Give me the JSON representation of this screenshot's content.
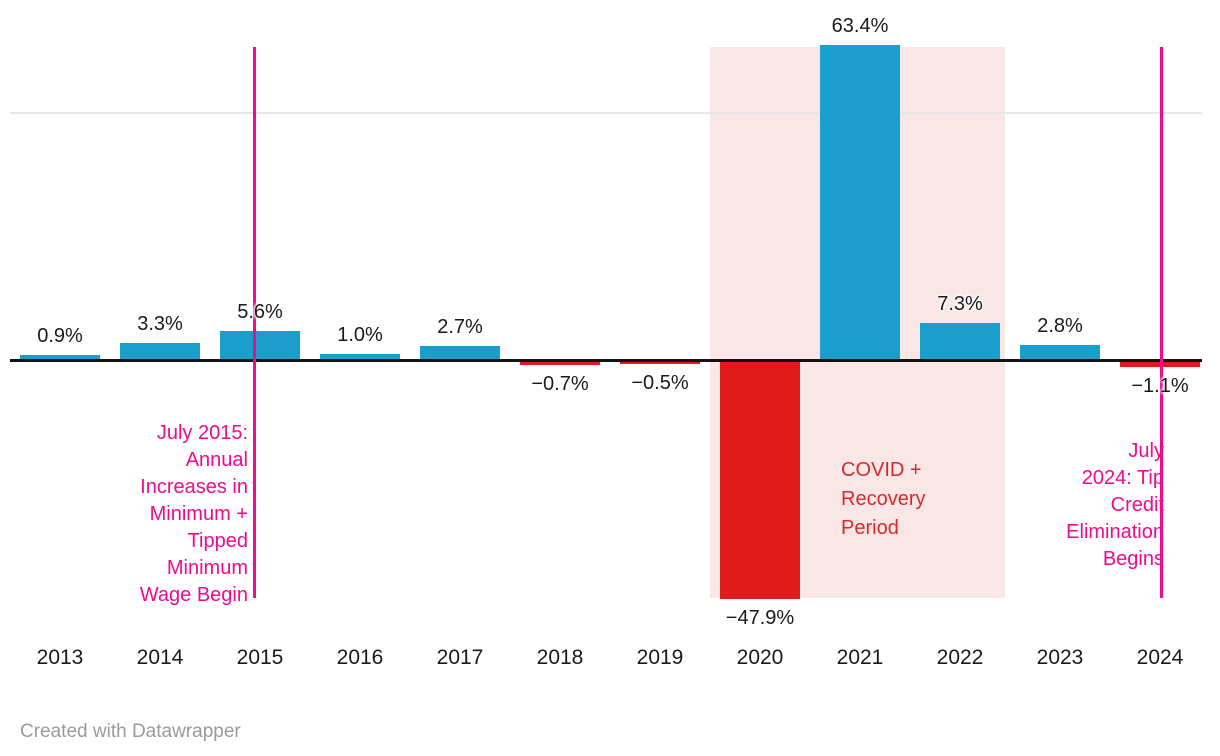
{
  "chart_data": {
    "type": "bar",
    "categories": [
      "2013",
      "2014",
      "2015",
      "2016",
      "2017",
      "2018",
      "2019",
      "2020",
      "2021",
      "2022",
      "2023",
      "2024"
    ],
    "values": [
      0.9,
      3.3,
      5.6,
      1.0,
      2.7,
      -0.7,
      -0.5,
      -47.9,
      63.4,
      7.3,
      2.8,
      -1.1
    ],
    "value_labels": [
      "0.9%",
      "3.3%",
      "5.6%",
      "1.0%",
      "2.7%",
      "−0.7%",
      "−0.5%",
      "−47.9%",
      "63.4%",
      "7.3%",
      "2.8%",
      "−1.1%"
    ],
    "title": "",
    "xlabel": "",
    "ylabel": "",
    "ylim": [
      -47.9,
      63.4
    ],
    "gridlines_pct": [
      50
    ],
    "legend": "none",
    "colors": {
      "positive_bar": "#1a9fcc",
      "negative_bar": "#e11b1c",
      "zero_axis": "#131313",
      "gridline": "#e7e7e7"
    },
    "annotations": {
      "line_2015": {
        "at": "July 2015",
        "color": "#f00a8e",
        "label": "July 2015:\nAnnual\nIncreases in\nMinimum +\nTipped\nMinimum\nWage Begin"
      },
      "region_covid": {
        "start_category": "2020",
        "end_category": "2022",
        "fill": "#f9e7e7",
        "text_color": "#d52b2b",
        "label": "COVID +\nRecovery\nPeriod"
      },
      "line_2024": {
        "at": "July 2024",
        "color": "#f00a8e",
        "label": "July\n2024: Tip\nCredit\nElimination\nBegins"
      }
    }
  },
  "footer": {
    "credit": "Created with Datawrapper"
  }
}
